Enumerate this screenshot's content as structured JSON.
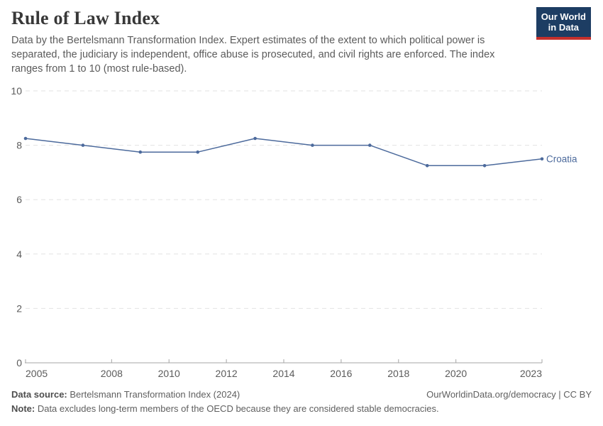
{
  "header": {
    "title": "Rule of Law Index",
    "subtitle": "Data by the Bertelsmann Transformation Index. Expert estimates of the extent to which political power is separated, the judiciary is independent, office abuse is prosecuted, and civil rights are enforced. The index ranges from 1 to 10 (most rule-based)."
  },
  "logo": {
    "line1": "Our World",
    "line2": "in Data",
    "bg_color": "#1d3d63",
    "accent_color": "#c5302c"
  },
  "chart_data": {
    "type": "line",
    "title": "Rule of Law Index",
    "xlabel": "",
    "ylabel": "",
    "xlim": [
      2005,
      2023
    ],
    "ylim": [
      0,
      10
    ],
    "x_ticks": [
      2005,
      2008,
      2010,
      2012,
      2014,
      2016,
      2018,
      2020,
      2023
    ],
    "y_ticks": [
      0,
      2,
      4,
      6,
      8,
      10
    ],
    "grid": "horizontal-dashed",
    "grid_color": "#e2e2e2",
    "axis_color": "#a5a5a5",
    "tick_label_color": "#5b5b5b",
    "legend_position": "end-of-line-label",
    "series": [
      {
        "name": "Croatia",
        "color": "#4c6a9c",
        "x": [
          2005,
          2007,
          2009,
          2011,
          2013,
          2015,
          2017,
          2019,
          2021,
          2023
        ],
        "values": [
          8.25,
          8.0,
          7.75,
          7.75,
          8.25,
          8.0,
          8.0,
          7.25,
          7.25,
          7.5
        ]
      }
    ]
  },
  "footer": {
    "datasource_label": "Data source:",
    "datasource_text": " Bertelsmann Transformation Index (2024)",
    "link": "OurWorldinData.org/democracy | CC BY",
    "note_label": "Note:",
    "note_text": " Data excludes long-term members of the OECD because they are considered stable democracies."
  }
}
